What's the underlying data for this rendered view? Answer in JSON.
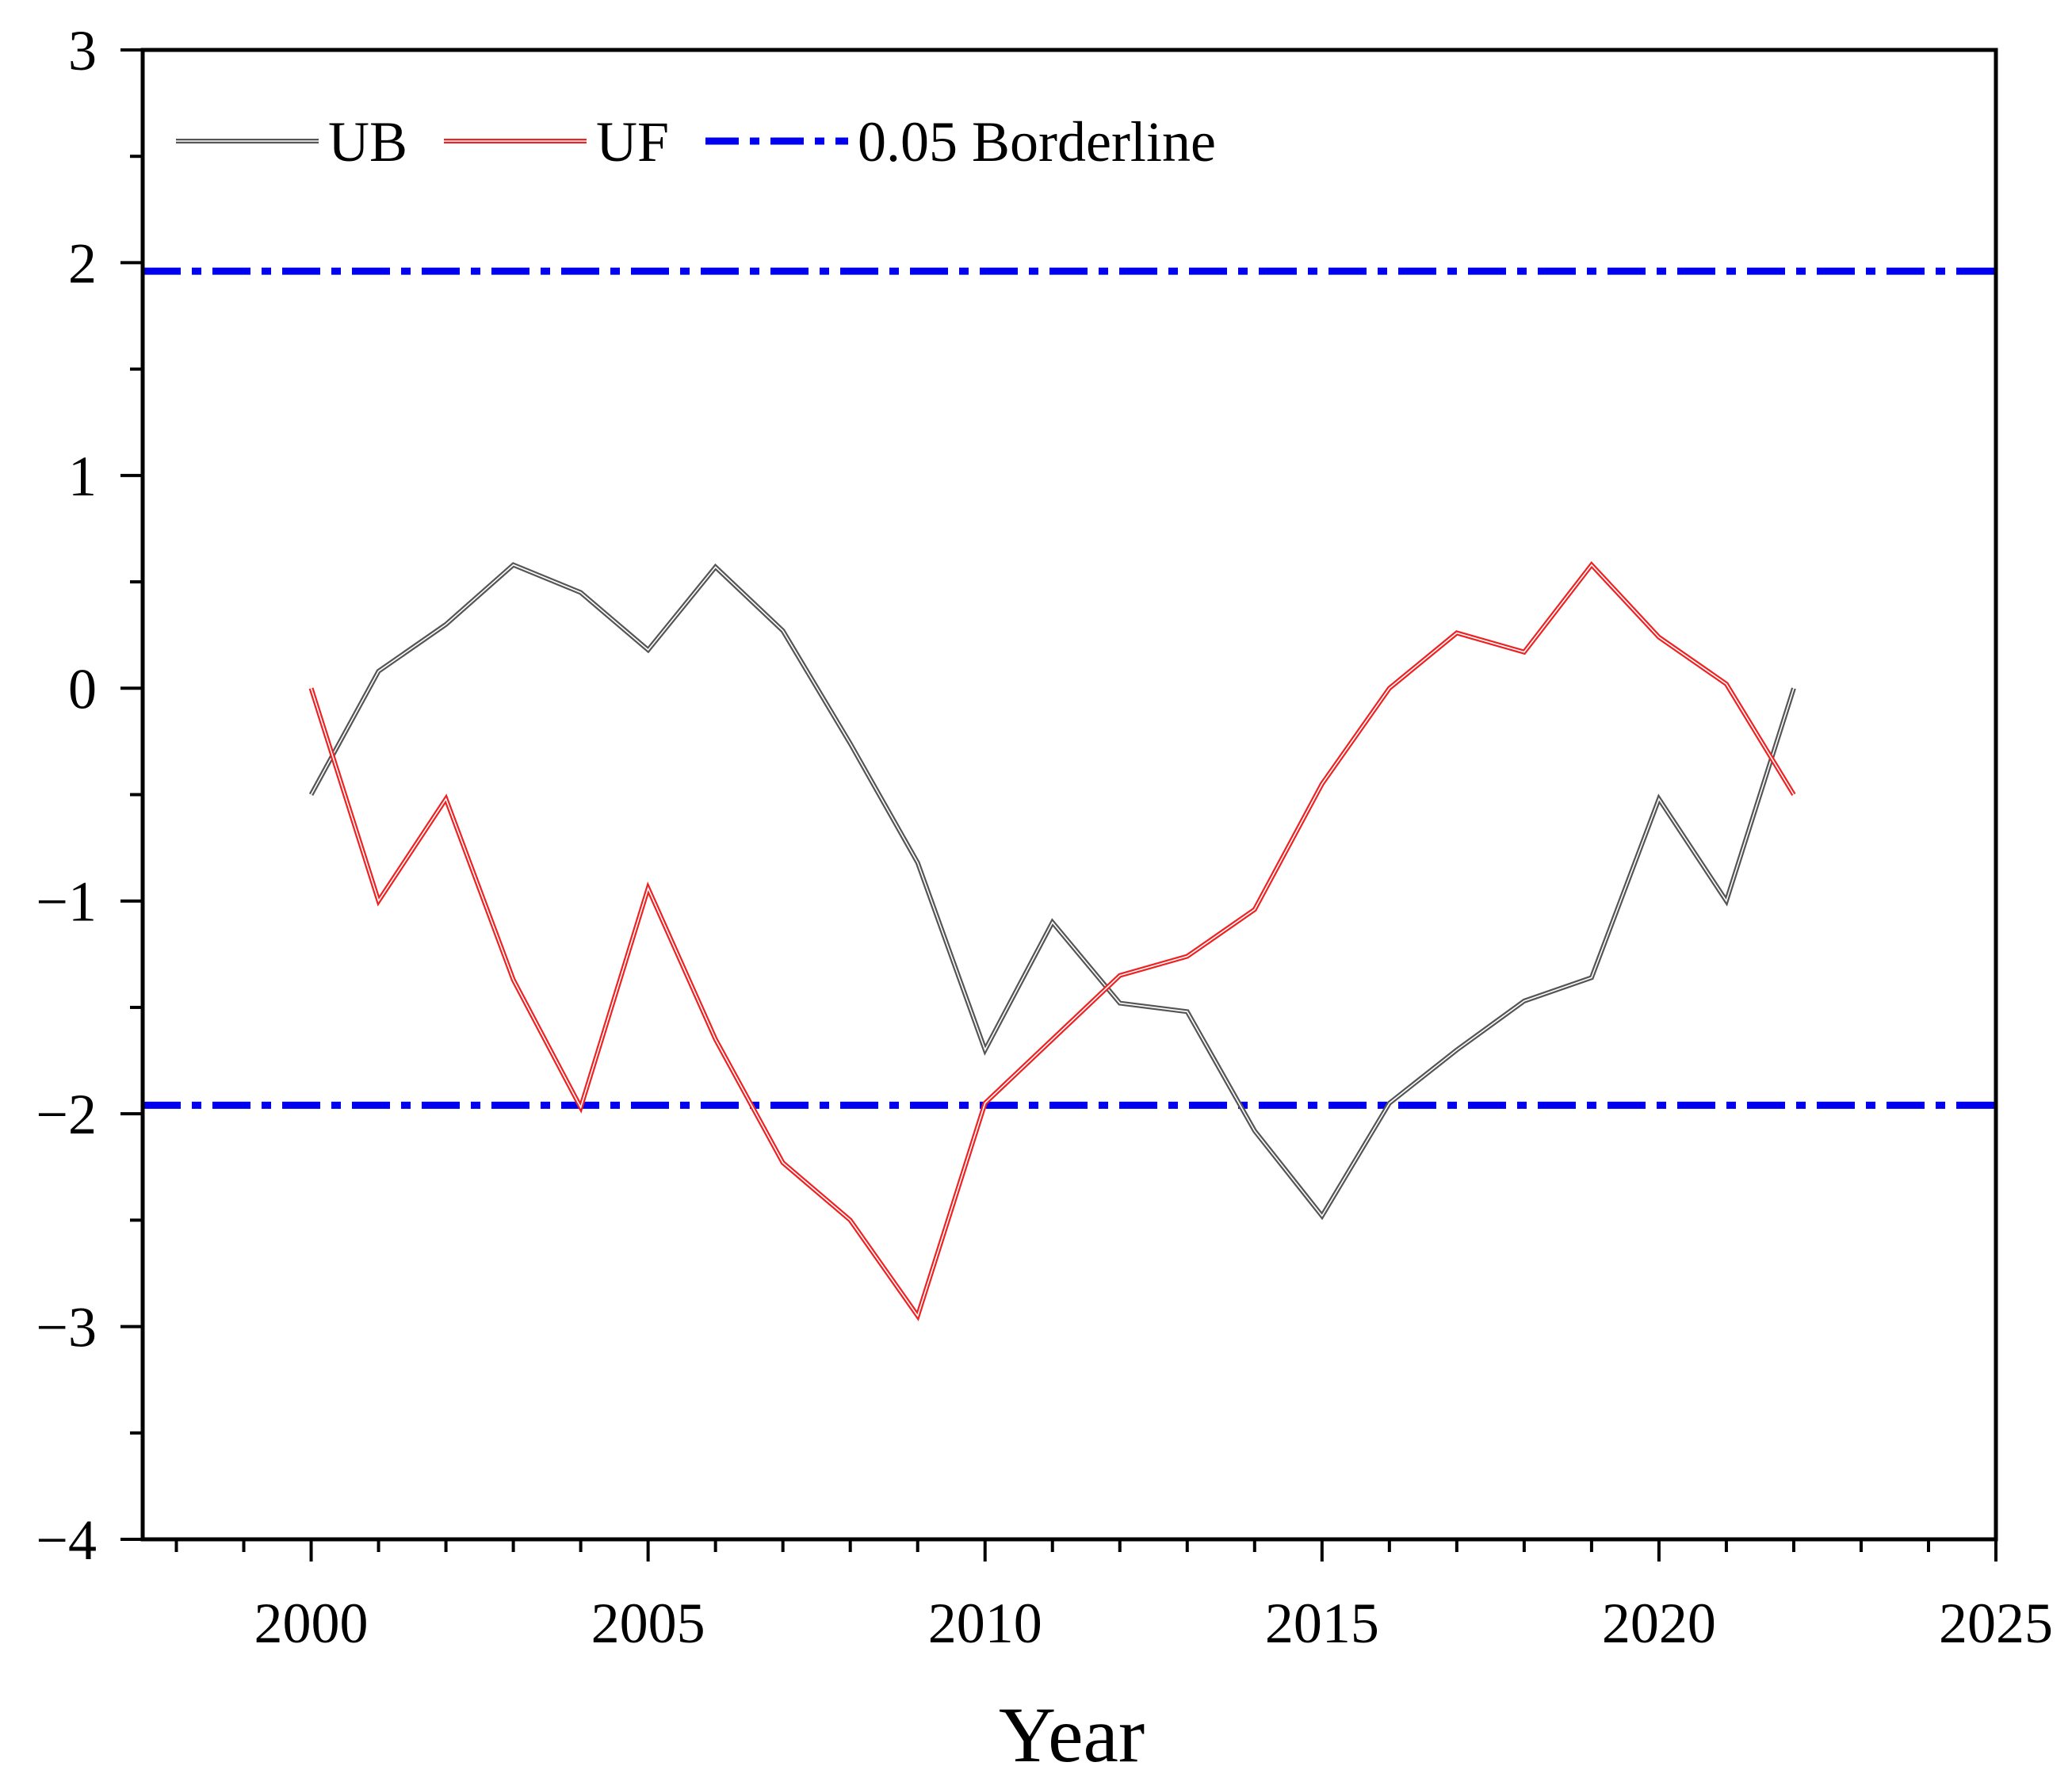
{
  "chart_data": {
    "type": "line",
    "title": "",
    "xlabel": "Year",
    "ylabel": "",
    "xlim": [
      1997.5,
      2025
    ],
    "ylim": [
      -4,
      3
    ],
    "x_ticks": [
      2000,
      2005,
      2010,
      2015,
      2020,
      2025
    ],
    "x_tick_labels": [
      "2000",
      "2005",
      "2010",
      "2015",
      "2020",
      "2025"
    ],
    "x_minor_step": 1,
    "y_ticks": [
      -4,
      -3,
      -2,
      -1,
      0,
      1,
      2,
      3
    ],
    "y_tick_labels": [
      "−4",
      "−3",
      "−2",
      "−1",
      "0",
      "1",
      "2",
      "3"
    ],
    "y_minor_step": 0.5,
    "grid": false,
    "legend_position": "top-left",
    "x": [
      2000,
      2001,
      2002,
      2003,
      2004,
      2005,
      2006,
      2007,
      2008,
      2009,
      2010,
      2011,
      2012,
      2013,
      2014,
      2015,
      2016,
      2017,
      2018,
      2019,
      2020,
      2021,
      2022
    ],
    "series": [
      {
        "name": "UB",
        "color": "#555555",
        "style": "double-line",
        "values": [
          -0.5,
          0.08,
          0.3,
          0.58,
          0.45,
          0.18,
          0.57,
          0.27,
          -0.26,
          -0.82,
          -1.7,
          -1.1,
          -1.48,
          -1.52,
          -2.08,
          -2.48,
          -1.95,
          -1.7,
          -1.47,
          -1.36,
          -0.52,
          -1.0,
          0.0
        ]
      },
      {
        "name": "UF",
        "color": "#ee2222",
        "style": "double-line",
        "values": [
          0.0,
          -1.0,
          -0.52,
          -1.37,
          -1.97,
          -0.94,
          -1.65,
          -2.23,
          -2.5,
          -2.95,
          -1.95,
          -1.65,
          -1.35,
          -1.26,
          -1.04,
          -0.45,
          0.0,
          0.26,
          0.17,
          0.58,
          0.24,
          0.02,
          -0.5
        ]
      }
    ],
    "reference_lines": [
      {
        "name": "0.05 Borderline",
        "color": "#0000ee",
        "style": "dash-dot",
        "y": 1.96
      },
      {
        "y": -1.96,
        "color": "#0000ee",
        "style": "dash-dot"
      }
    ],
    "legend": [
      "UB",
      "UF",
      "0.05 Borderline"
    ]
  }
}
